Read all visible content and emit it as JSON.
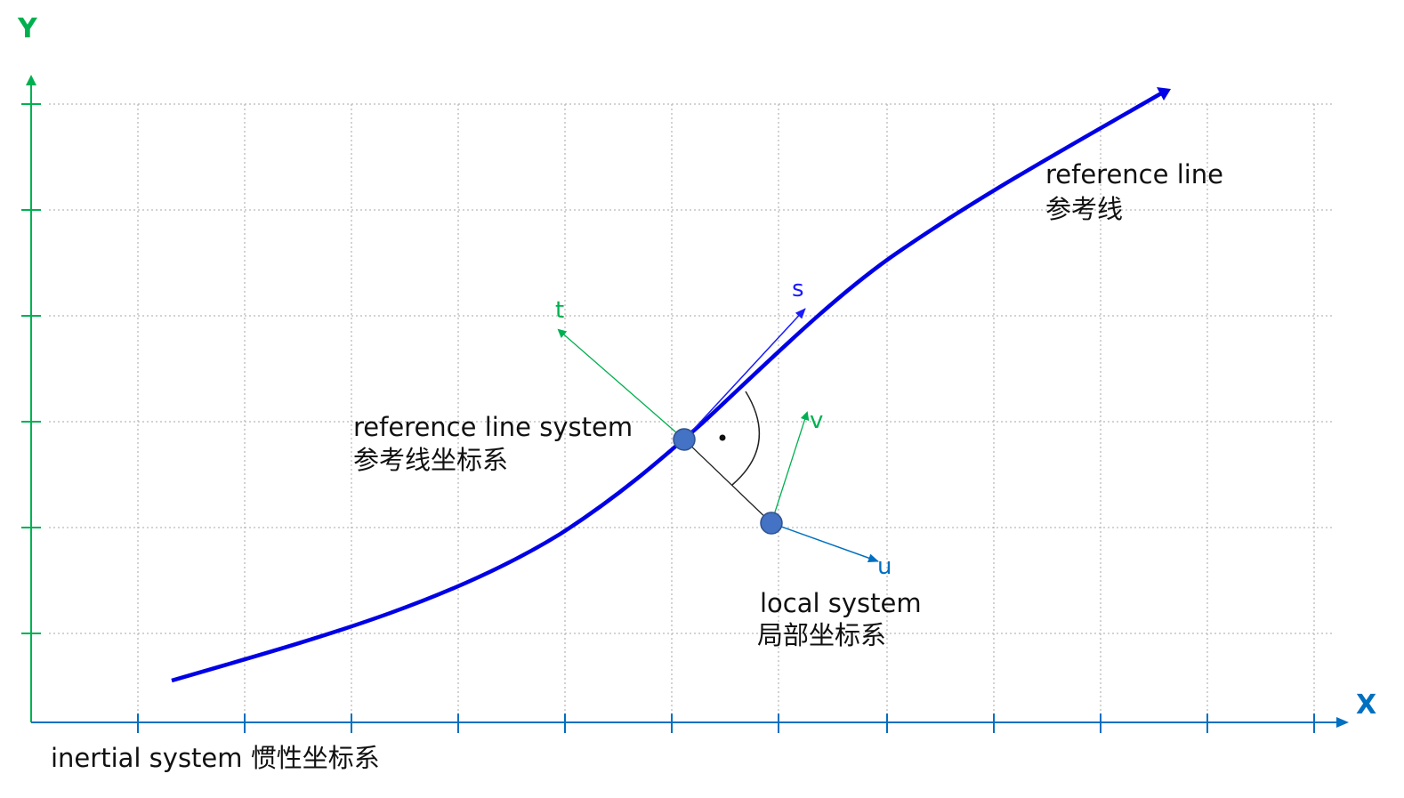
{
  "axes": {
    "x_label": "X",
    "y_label": "Y"
  },
  "labels": {
    "reference_line": "reference line",
    "reference_line_cn": "参考线",
    "reference_line_system": "reference line system",
    "reference_line_system_cn": "参考线坐标系",
    "local_system": "local system",
    "local_system_cn": "局部坐标系",
    "inertial_system": "inertial system 惯性坐标系"
  },
  "vectors": {
    "s": "s",
    "t": "t",
    "u": "u",
    "v": "v"
  },
  "colors": {
    "axis": "#00b050",
    "x_axis": "#0070c0",
    "curve": "#0000e6",
    "s_vector": "#1a1aff",
    "t_vector": "#00b050",
    "v_vector": "#00b050",
    "u_vector": "#0070c0",
    "point_fill": "#4472c4",
    "point_stroke": "#2f528f",
    "grid": "#b9b9b9"
  }
}
